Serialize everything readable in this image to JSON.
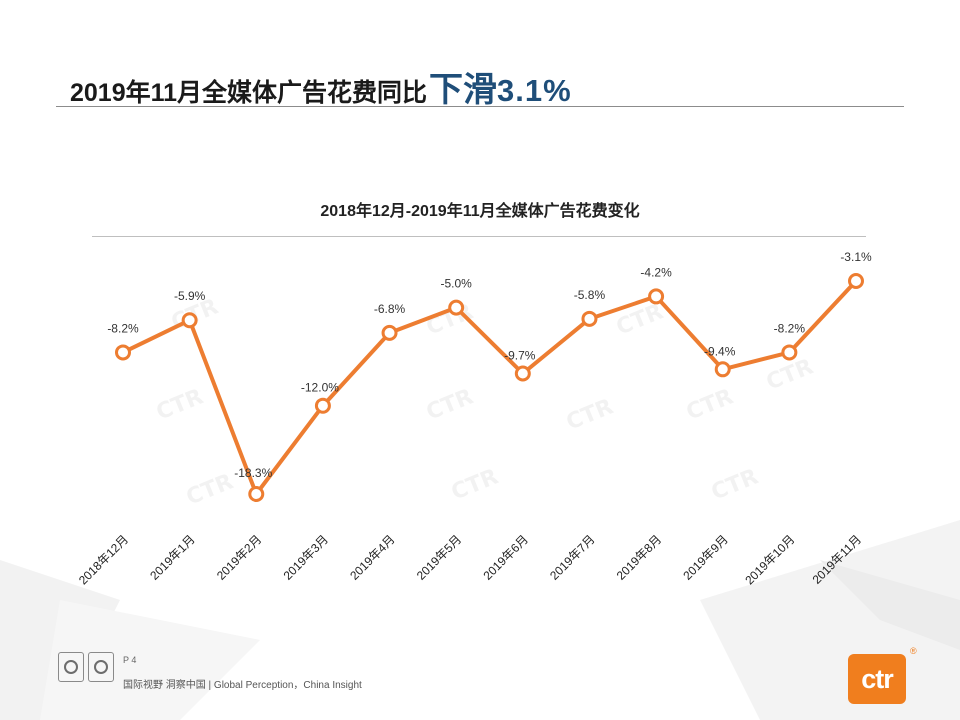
{
  "page": {
    "title_main": "2019年11月全媒体广告花费同比",
    "title_emphasis": "下滑",
    "title_value": "3.1%"
  },
  "chart_data": {
    "type": "line",
    "title": "2018年12月-2019年11月全媒体广告花费变化",
    "categories": [
      "2018年12月",
      "2019年1月",
      "2019年2月",
      "2019年3月",
      "2019年4月",
      "2019年5月",
      "2019年6月",
      "2019年7月",
      "2019年8月",
      "2019年9月",
      "2019年10月",
      "2019年11月"
    ],
    "values": [
      -8.2,
      -5.9,
      -18.3,
      -12.0,
      -6.8,
      -5.0,
      -9.7,
      -5.8,
      -4.2,
      -9.4,
      -8.2,
      -3.1
    ],
    "labels": [
      "-8.2%",
      "-5.9%",
      "-18.3%",
      "-12.0%",
      "-6.8%",
      "-5.0%",
      "-9.7%",
      "-5.8%",
      "-4.2%",
      "-9.4%",
      "-8.2%",
      "-3.1%"
    ],
    "unit": "%",
    "xlabel": "",
    "ylabel": "",
    "grid": false,
    "legend": "none",
    "line_color": "#ED7D31",
    "marker_fill": "#FFFFFF"
  },
  "footer": {
    "page_number": "P 4",
    "slogan": "国际视野 洞察中国 | Global Perception，China Insight",
    "brand": "ctr",
    "brand_mark": "®"
  },
  "colors": {
    "title_emphasis": "#1F4E79",
    "brand": "#F07E1E"
  }
}
